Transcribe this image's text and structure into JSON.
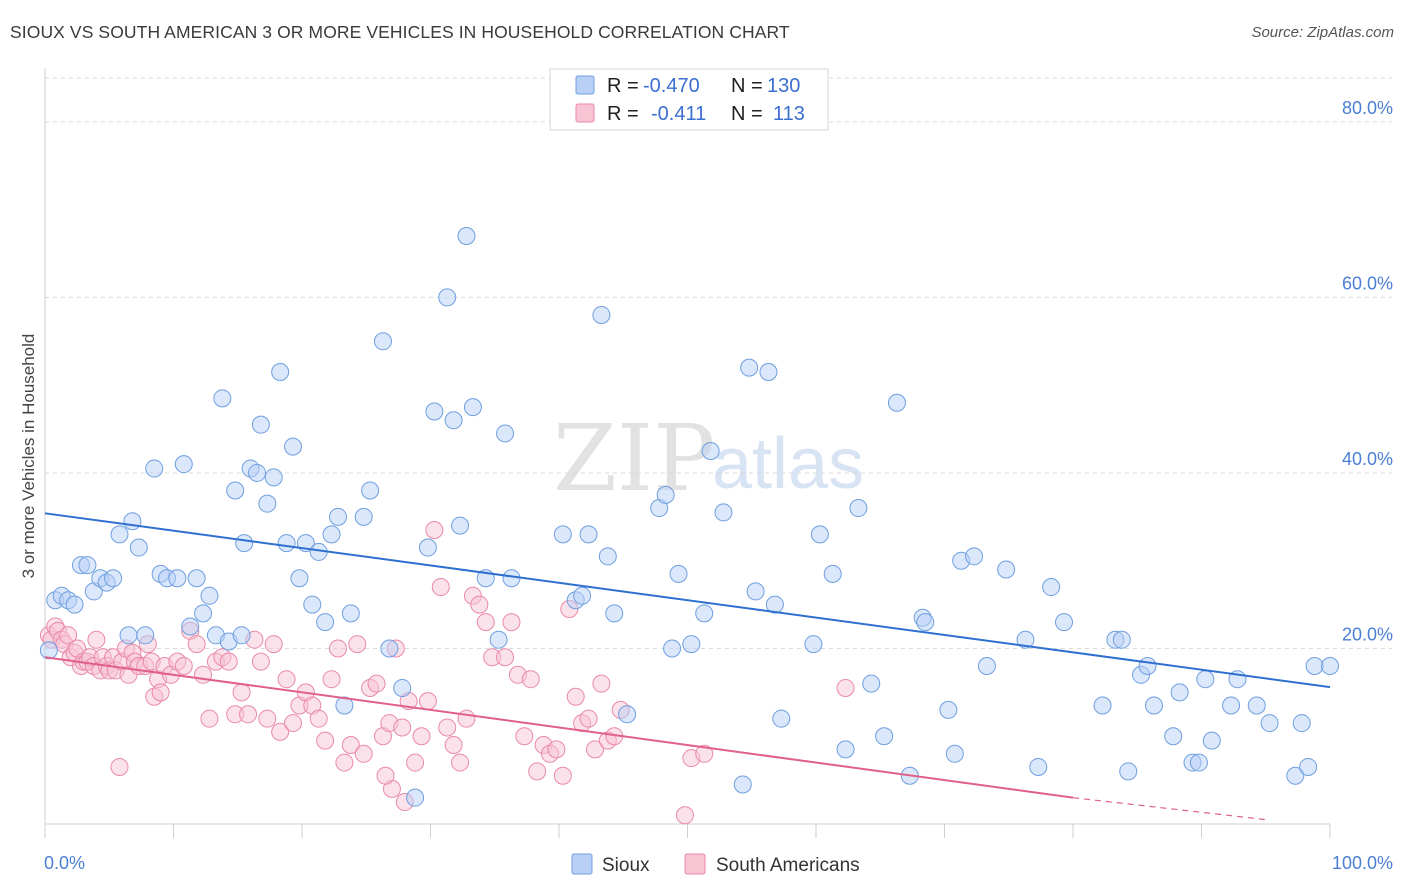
{
  "header": {
    "title": "SIOUX VS SOUTH AMERICAN 3 OR MORE VEHICLES IN HOUSEHOLD CORRELATION CHART",
    "source": "Source: ZipAtlas.com"
  },
  "legend_box": {
    "r_label": "R =",
    "n_label": "N =",
    "rows": [
      {
        "r": "-0.470",
        "n": "130"
      },
      {
        "r": "-0.411",
        "n": "113"
      }
    ]
  },
  "watermark": {
    "zip": "ZIP",
    "atlas": "atlas"
  },
  "colors": {
    "sioux_fill": "#b8d0f5",
    "sioux_stroke": "#6f9fe0",
    "sioux_line": "#2f6fd0",
    "sa_fill": "#f8c4d4",
    "sa_stroke": "#e98aaa",
    "sa_line": "#e0608a",
    "grid": "#d9d9d9",
    "tick_text": "#4a7fd4"
  },
  "chart_data": {
    "type": "scatter",
    "title": "SIOUX VS SOUTH AMERICAN 3 OR MORE VEHICLES IN HOUSEHOLD CORRELATION CHART",
    "xlabel": "",
    "ylabel": "3 or more Vehicles in Household",
    "xlim": [
      0,
      100
    ],
    "ylim": [
      0,
      85
    ],
    "x_tick_labels": [
      "0.0%",
      "100.0%"
    ],
    "y_ticks": [
      20,
      40,
      60,
      80
    ],
    "y_tick_labels": [
      "20.0%",
      "40.0%",
      "60.0%",
      "80.0%"
    ],
    "grid": "horizontal dashed",
    "legend_position": "top-center",
    "series": [
      {
        "name": "Sioux",
        "R": -0.47,
        "N": 130,
        "trend": {
          "x0": 0,
          "y0": 35.4,
          "x1": 100,
          "y1": 15.6
        },
        "points": [
          [
            0.3,
            19.8
          ],
          [
            0.8,
            25.5
          ],
          [
            1.3,
            26.0
          ],
          [
            1.8,
            25.5
          ],
          [
            2.3,
            25.0
          ],
          [
            2.8,
            29.5
          ],
          [
            3.3,
            29.5
          ],
          [
            3.8,
            26.5
          ],
          [
            4.3,
            28.0
          ],
          [
            4.8,
            27.5
          ],
          [
            5.3,
            28.0
          ],
          [
            5.8,
            33.0
          ],
          [
            6.8,
            34.5
          ],
          [
            7.3,
            31.5
          ],
          [
            6.5,
            21.5
          ],
          [
            7.8,
            21.5
          ],
          [
            8.5,
            40.5
          ],
          [
            9.0,
            28.5
          ],
          [
            9.5,
            28.0
          ],
          [
            10.3,
            28.0
          ],
          [
            10.8,
            41.0
          ],
          [
            11.3,
            22.5
          ],
          [
            11.8,
            28.0
          ],
          [
            12.3,
            24.0
          ],
          [
            12.8,
            26.0
          ],
          [
            13.3,
            21.5
          ],
          [
            13.8,
            48.5
          ],
          [
            14.3,
            20.8
          ],
          [
            14.8,
            38.0
          ],
          [
            15.3,
            21.5
          ],
          [
            15.5,
            32.0
          ],
          [
            16.0,
            40.5
          ],
          [
            16.5,
            40.0
          ],
          [
            16.8,
            45.5
          ],
          [
            17.3,
            36.5
          ],
          [
            17.8,
            39.5
          ],
          [
            18.3,
            51.5
          ],
          [
            18.8,
            32.0
          ],
          [
            19.3,
            43.0
          ],
          [
            19.8,
            28.0
          ],
          [
            20.3,
            32.0
          ],
          [
            20.8,
            25.0
          ],
          [
            21.3,
            31.0
          ],
          [
            21.8,
            23.0
          ],
          [
            22.3,
            33.0
          ],
          [
            22.8,
            35.0
          ],
          [
            23.3,
            13.5
          ],
          [
            23.8,
            24.0
          ],
          [
            24.8,
            35.0
          ],
          [
            25.3,
            38.0
          ],
          [
            26.3,
            55.0
          ],
          [
            26.8,
            20.0
          ],
          [
            27.8,
            15.5
          ],
          [
            28.8,
            3.0
          ],
          [
            29.8,
            31.5
          ],
          [
            30.3,
            47.0
          ],
          [
            31.3,
            60.0
          ],
          [
            31.8,
            46.0
          ],
          [
            32.3,
            34.0
          ],
          [
            32.8,
            67.0
          ],
          [
            33.3,
            47.5
          ],
          [
            34.3,
            28.0
          ],
          [
            35.3,
            21.0
          ],
          [
            35.8,
            44.5
          ],
          [
            36.3,
            28.0
          ],
          [
            40.3,
            33.0
          ],
          [
            41.3,
            25.5
          ],
          [
            41.8,
            26.0
          ],
          [
            42.3,
            33.0
          ],
          [
            43.3,
            58.0
          ],
          [
            43.8,
            30.5
          ],
          [
            44.3,
            24.0
          ],
          [
            45.3,
            12.5
          ],
          [
            47.8,
            36.0
          ],
          [
            48.3,
            37.5
          ],
          [
            48.8,
            20.0
          ],
          [
            49.3,
            28.5
          ],
          [
            50.3,
            20.5
          ],
          [
            51.3,
            24.0
          ],
          [
            51.8,
            42.5
          ],
          [
            52.8,
            35.5
          ],
          [
            54.3,
            4.5
          ],
          [
            54.8,
            52.0
          ],
          [
            55.3,
            26.5
          ],
          [
            56.3,
            51.5
          ],
          [
            56.8,
            25.0
          ],
          [
            57.3,
            12.0
          ],
          [
            59.8,
            20.5
          ],
          [
            60.3,
            33.0
          ],
          [
            61.3,
            28.5
          ],
          [
            62.3,
            8.5
          ],
          [
            63.3,
            36.0
          ],
          [
            64.3,
            16.0
          ],
          [
            65.3,
            10.0
          ],
          [
            66.3,
            48.0
          ],
          [
            67.3,
            5.5
          ],
          [
            68.3,
            23.5
          ],
          [
            68.5,
            23.0
          ],
          [
            70.3,
            13.0
          ],
          [
            70.8,
            8.0
          ],
          [
            71.3,
            30.0
          ],
          [
            72.3,
            30.5
          ],
          [
            73.3,
            18.0
          ],
          [
            74.8,
            29.0
          ],
          [
            76.3,
            21.0
          ],
          [
            77.3,
            6.5
          ],
          [
            78.3,
            27.0
          ],
          [
            79.3,
            23.0
          ],
          [
            82.3,
            13.5
          ],
          [
            83.3,
            21.0
          ],
          [
            83.8,
            21.0
          ],
          [
            84.3,
            6.0
          ],
          [
            85.3,
            17.0
          ],
          [
            85.8,
            18.0
          ],
          [
            86.3,
            13.5
          ],
          [
            87.8,
            10.0
          ],
          [
            88.3,
            15.0
          ],
          [
            89.3,
            7.0
          ],
          [
            89.8,
            7.0
          ],
          [
            90.3,
            16.5
          ],
          [
            90.8,
            9.5
          ],
          [
            92.3,
            13.5
          ],
          [
            92.8,
            16.5
          ],
          [
            94.3,
            13.5
          ],
          [
            95.3,
            11.5
          ],
          [
            97.3,
            5.5
          ],
          [
            97.8,
            11.5
          ],
          [
            98.3,
            6.5
          ],
          [
            98.8,
            18.0
          ],
          [
            100.0,
            18.0
          ]
        ]
      },
      {
        "name": "South Americans",
        "R": -0.411,
        "N": 113,
        "trend": {
          "x0": 0,
          "y0": 19.0,
          "x1": 80,
          "y1": 3.0,
          "dash_x1": 95,
          "dash_y1": 0.5
        },
        "points": [
          [
            0.3,
            21.5
          ],
          [
            0.5,
            21.0
          ],
          [
            0.8,
            22.5
          ],
          [
            1.0,
            22.0
          ],
          [
            1.3,
            21.0
          ],
          [
            1.5,
            20.5
          ],
          [
            1.8,
            21.5
          ],
          [
            2.0,
            19.0
          ],
          [
            2.3,
            19.5
          ],
          [
            2.5,
            20.0
          ],
          [
            2.8,
            18.0
          ],
          [
            3.0,
            18.5
          ],
          [
            3.3,
            18.5
          ],
          [
            3.5,
            19.0
          ],
          [
            3.8,
            18.0
          ],
          [
            4.0,
            21.0
          ],
          [
            4.3,
            17.5
          ],
          [
            4.5,
            19.0
          ],
          [
            4.8,
            18.0
          ],
          [
            5.0,
            17.5
          ],
          [
            5.3,
            19.0
          ],
          [
            5.5,
            17.5
          ],
          [
            5.8,
            6.5
          ],
          [
            6.0,
            18.5
          ],
          [
            6.3,
            20.0
          ],
          [
            6.5,
            17.0
          ],
          [
            6.8,
            19.5
          ],
          [
            7.0,
            18.5
          ],
          [
            7.3,
            18.0
          ],
          [
            7.8,
            18.0
          ],
          [
            8.0,
            20.5
          ],
          [
            8.3,
            18.5
          ],
          [
            8.5,
            14.5
          ],
          [
            8.8,
            16.5
          ],
          [
            9.0,
            15.0
          ],
          [
            9.3,
            18.0
          ],
          [
            9.8,
            17.0
          ],
          [
            10.3,
            18.5
          ],
          [
            10.8,
            18.0
          ],
          [
            11.3,
            22.0
          ],
          [
            11.8,
            20.5
          ],
          [
            12.3,
            17.0
          ],
          [
            12.8,
            12.0
          ],
          [
            13.3,
            18.5
          ],
          [
            13.8,
            19.0
          ],
          [
            14.3,
            18.5
          ],
          [
            14.8,
            12.5
          ],
          [
            15.3,
            15.0
          ],
          [
            15.8,
            12.5
          ],
          [
            16.3,
            21.0
          ],
          [
            16.8,
            18.5
          ],
          [
            17.3,
            12.0
          ],
          [
            17.8,
            20.5
          ],
          [
            18.3,
            10.5
          ],
          [
            18.8,
            16.5
          ],
          [
            19.3,
            11.5
          ],
          [
            19.8,
            13.5
          ],
          [
            20.3,
            15.0
          ],
          [
            20.8,
            13.5
          ],
          [
            21.3,
            12.0
          ],
          [
            21.8,
            9.5
          ],
          [
            22.3,
            16.5
          ],
          [
            22.8,
            20.0
          ],
          [
            23.3,
            7.0
          ],
          [
            23.8,
            9.0
          ],
          [
            24.3,
            20.5
          ],
          [
            24.8,
            8.0
          ],
          [
            25.3,
            15.5
          ],
          [
            25.8,
            16.0
          ],
          [
            26.3,
            10.0
          ],
          [
            26.8,
            11.5
          ],
          [
            27.3,
            20.0
          ],
          [
            27.8,
            11.0
          ],
          [
            28.3,
            14.0
          ],
          [
            28.8,
            7.0
          ],
          [
            29.3,
            10.0
          ],
          [
            29.8,
            14.0
          ],
          [
            30.3,
            33.5
          ],
          [
            30.8,
            27.0
          ],
          [
            31.3,
            11.0
          ],
          [
            31.8,
            9.0
          ],
          [
            32.3,
            7.0
          ],
          [
            32.8,
            12.0
          ],
          [
            33.3,
            26.0
          ],
          [
            33.8,
            25.0
          ],
          [
            34.3,
            23.0
          ],
          [
            34.8,
            19.0
          ],
          [
            35.8,
            19.0
          ],
          [
            36.3,
            23.0
          ],
          [
            36.8,
            17.0
          ],
          [
            37.3,
            10.0
          ],
          [
            37.8,
            16.5
          ],
          [
            38.3,
            6.0
          ],
          [
            38.8,
            9.0
          ],
          [
            39.3,
            8.0
          ],
          [
            39.8,
            8.5
          ],
          [
            40.3,
            5.5
          ],
          [
            40.8,
            24.5
          ],
          [
            41.3,
            14.5
          ],
          [
            41.8,
            11.5
          ],
          [
            42.3,
            12.0
          ],
          [
            42.8,
            8.5
          ],
          [
            43.3,
            16.0
          ],
          [
            43.8,
            9.5
          ],
          [
            44.3,
            10.0
          ],
          [
            44.8,
            13.0
          ],
          [
            49.8,
            1.0
          ],
          [
            50.3,
            7.5
          ],
          [
            51.3,
            8.0
          ],
          [
            62.3,
            15.5
          ],
          [
            28.0,
            2.5
          ],
          [
            27.0,
            4.0
          ],
          [
            26.5,
            5.5
          ]
        ]
      }
    ]
  },
  "bottom_legend": {
    "items": [
      {
        "label": "Sioux"
      },
      {
        "label": "South Americans"
      }
    ]
  }
}
